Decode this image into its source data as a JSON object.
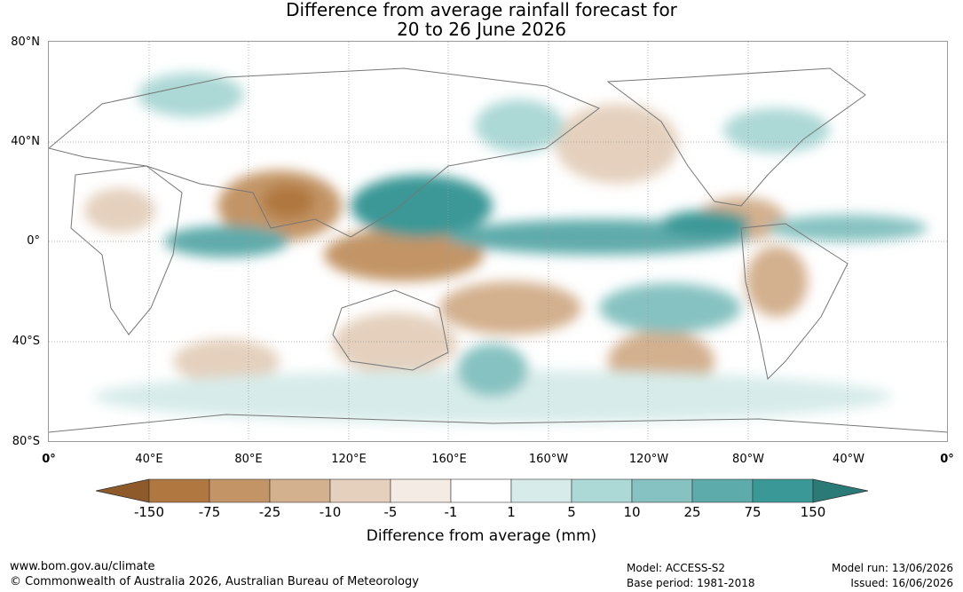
{
  "title": {
    "line1": "Difference from average rainfall forecast for",
    "line2": "20 to 26 June 2026"
  },
  "map": {
    "lat_labels": [
      "80°N",
      "40°N",
      "0°",
      "40°S",
      "80°S"
    ],
    "lon_labels": [
      "0°",
      "40°E",
      "80°E",
      "120°E",
      "160°E",
      "160°W",
      "120°W",
      "80°W",
      "40°W",
      "0°"
    ]
  },
  "colorbar": {
    "tick_labels": [
      "-150",
      "-75",
      "-25",
      "-10",
      "-5",
      "-1",
      "1",
      "5",
      "10",
      "25",
      "75",
      "150"
    ],
    "colors": [
      "#8e5a2a",
      "#b07840",
      "#c39566",
      "#d3b08e",
      "#e4d0bd",
      "#f4ebe4",
      "#ffffff",
      "#d7ecea",
      "#acd8d6",
      "#86c2c1",
      "#5eabab",
      "#3a9896",
      "#2a7a78"
    ],
    "label": "Difference from average (mm)"
  },
  "footer": {
    "website": "www.bom.gov.au/climate",
    "copyright": "© Commonwealth of Australia 2026, Australian Bureau of Meteorology",
    "model": "Model: ACCESS-S2",
    "base_period": "Base period: 1981-2018",
    "model_run": "Model run: 13/06/2026",
    "issued": "Issued: 16/06/2026"
  }
}
